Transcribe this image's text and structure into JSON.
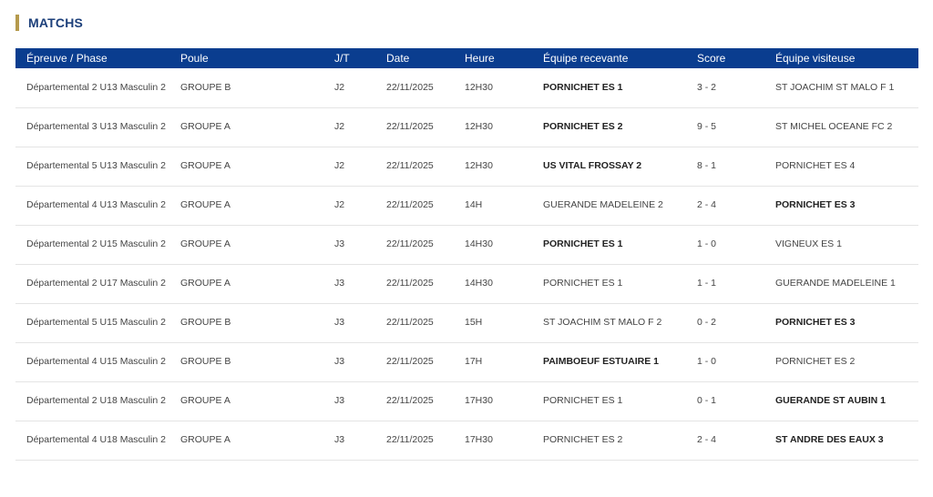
{
  "section": {
    "title": "MATCHS"
  },
  "columns": [
    "Épreuve / Phase",
    "Poule",
    "J/T",
    "Date",
    "Heure",
    "Équipe recevante",
    "Score",
    "Équipe visiteuse"
  ],
  "matches": [
    {
      "epreuve": "Départemental 2 U13 Masculin 2",
      "poule": "GROUPE B",
      "jt": "J2",
      "date": "22/11/2025",
      "heure": "12H30",
      "home": "PORNICHET ES 1",
      "home_bold": true,
      "score": "3 - 2",
      "away": "ST JOACHIM ST MALO F 1",
      "away_bold": false
    },
    {
      "epreuve": "Départemental 3 U13 Masculin 2",
      "poule": "GROUPE A",
      "jt": "J2",
      "date": "22/11/2025",
      "heure": "12H30",
      "home": "PORNICHET ES 2",
      "home_bold": true,
      "score": "9 - 5",
      "away": "ST MICHEL OCEANE FC 2",
      "away_bold": false
    },
    {
      "epreuve": "Départemental 5 U13 Masculin 2",
      "poule": "GROUPE A",
      "jt": "J2",
      "date": "22/11/2025",
      "heure": "12H30",
      "home": "US VITAL FROSSAY 2",
      "home_bold": true,
      "score": "8 - 1",
      "away": "PORNICHET ES 4",
      "away_bold": false
    },
    {
      "epreuve": "Départemental 4 U13 Masculin 2",
      "poule": "GROUPE A",
      "jt": "J2",
      "date": "22/11/2025",
      "heure": "14H",
      "home": "GUERANDE MADELEINE 2",
      "home_bold": false,
      "score": "2 - 4",
      "away": "PORNICHET ES 3",
      "away_bold": true
    },
    {
      "epreuve": "Départemental 2 U15 Masculin 2",
      "poule": "GROUPE A",
      "jt": "J3",
      "date": "22/11/2025",
      "heure": "14H30",
      "home": "PORNICHET ES 1",
      "home_bold": true,
      "score": "1 - 0",
      "away": "VIGNEUX ES 1",
      "away_bold": false
    },
    {
      "epreuve": "Départemental 2 U17 Masculin 2",
      "poule": "GROUPE A",
      "jt": "J3",
      "date": "22/11/2025",
      "heure": "14H30",
      "home": "PORNICHET ES 1",
      "home_bold": false,
      "score": "1 - 1",
      "away": "GUERANDE MADELEINE 1",
      "away_bold": false
    },
    {
      "epreuve": "Départemental 5 U15 Masculin 2",
      "poule": "GROUPE B",
      "jt": "J3",
      "date": "22/11/2025",
      "heure": "15H",
      "home": "ST JOACHIM ST MALO F 2",
      "home_bold": false,
      "score": "0 - 2",
      "away": "PORNICHET ES 3",
      "away_bold": true
    },
    {
      "epreuve": "Départemental 4 U15 Masculin 2",
      "poule": "GROUPE B",
      "jt": "J3",
      "date": "22/11/2025",
      "heure": "17H",
      "home": "PAIMBOEUF ESTUAIRE 1",
      "home_bold": true,
      "score": "1 - 0",
      "away": "PORNICHET ES 2",
      "away_bold": false
    },
    {
      "epreuve": "Départemental 2 U18 Masculin 2",
      "poule": "GROUPE A",
      "jt": "J3",
      "date": "22/11/2025",
      "heure": "17H30",
      "home": "PORNICHET ES 1",
      "home_bold": false,
      "score": "0 - 1",
      "away": "GUERANDE ST AUBIN 1",
      "away_bold": true
    },
    {
      "epreuve": "Départemental 4 U18 Masculin 2",
      "poule": "GROUPE A",
      "jt": "J3",
      "date": "22/11/2025",
      "heure": "17H30",
      "home": "PORNICHET ES 2",
      "home_bold": false,
      "score": "2 - 4",
      "away": "ST ANDRE DES EAUX 3",
      "away_bold": true
    }
  ],
  "colors": {
    "header_bg": "#0a3d8f",
    "title": "#1c3f7a",
    "accent": "#b59a4d"
  }
}
